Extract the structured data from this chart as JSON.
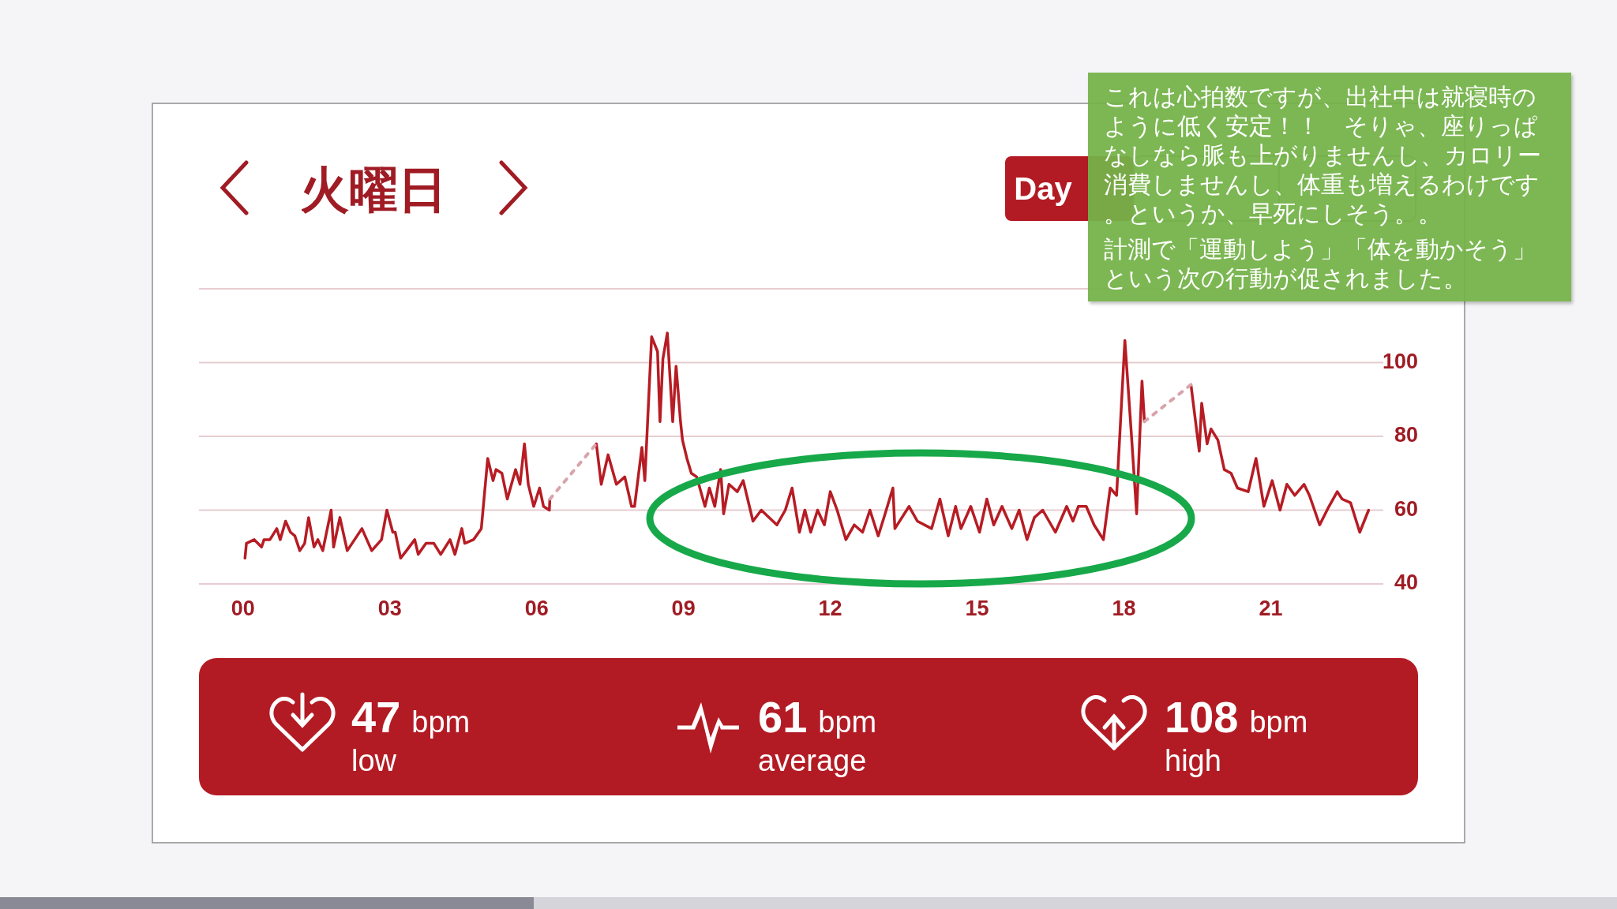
{
  "chart_data": {
    "type": "line",
    "title": "火曜日",
    "xlim": [
      -0.9,
      23.3
    ],
    "xticks": [
      {
        "value": 0,
        "label": "00"
      },
      {
        "value": 3,
        "label": "03"
      },
      {
        "value": 6,
        "label": "06"
      },
      {
        "value": 9,
        "label": "09"
      },
      {
        "value": 12,
        "label": "12"
      },
      {
        "value": 15,
        "label": "15"
      },
      {
        "value": 18,
        "label": "18"
      },
      {
        "value": 21,
        "label": "21"
      }
    ],
    "ylim": [
      40,
      120
    ],
    "yticks": [
      40,
      60,
      80,
      100,
      {
        "value": 120,
        "label": null
      }
    ],
    "grid": "y",
    "series": [
      {
        "color": "#b71c24",
        "line_style": "solid",
        "x": [
          0.04,
          0.07,
          0.23,
          0.38,
          0.43,
          0.55,
          0.69,
          0.76,
          0.87,
          0.97,
          1.06,
          1.16,
          1.26,
          1.34,
          1.45,
          1.53,
          1.63,
          1.8,
          1.85,
          1.98,
          2.13,
          2.43,
          2.63,
          2.83,
          2.94,
          3.06,
          3.11,
          3.22,
          3.34,
          3.51,
          3.58,
          3.74,
          3.9,
          4.04,
          4.23,
          4.33,
          4.47,
          4.53,
          4.71,
          4.87,
          5.0,
          5.11,
          5.17,
          5.29,
          5.4,
          5.57,
          5.66,
          5.75,
          5.83,
          5.94,
          6.06,
          6.14,
          6.26,
          6.27
        ],
        "values": [
          47,
          51,
          52,
          50,
          52,
          52,
          55,
          52,
          57,
          54,
          53,
          49,
          51,
          58,
          50,
          52,
          49,
          60,
          50,
          58,
          49,
          55,
          49,
          52,
          60,
          54,
          54,
          47,
          49,
          52,
          48,
          51,
          51,
          48,
          52,
          48,
          55,
          51,
          52,
          55,
          74,
          68,
          71,
          70,
          63,
          71,
          67,
          78,
          67,
          61,
          66,
          61,
          60,
          63
        ]
      },
      {
        "color": "#b71c24",
        "line_style": "solid",
        "x": [
          7.22,
          7.32,
          7.46,
          7.63,
          7.8,
          7.94,
          8.0,
          8.15,
          8.21,
          8.35,
          8.47,
          8.52,
          8.58,
          8.67,
          8.78,
          8.85,
          8.94,
          8.98,
          9.07,
          9.16,
          9.27,
          9.44,
          9.53,
          9.64,
          9.76,
          9.82,
          9.93,
          10.1,
          10.22,
          10.42,
          10.59,
          10.91,
          11.08,
          11.22,
          11.37,
          11.48,
          11.6,
          11.74,
          11.88,
          12.0,
          12.14,
          12.32,
          12.49,
          12.66,
          12.81,
          12.98,
          13.12,
          13.28,
          13.32,
          13.61,
          13.78,
          14.07,
          14.24,
          14.41,
          14.56,
          14.67,
          14.87,
          15.05,
          15.2,
          15.34,
          15.51,
          15.71,
          15.86,
          16.02,
          16.17,
          16.34,
          16.6,
          16.83,
          16.96,
          17.07,
          17.23,
          17.39,
          17.58,
          17.72,
          17.85,
          18.02,
          18.15,
          18.26,
          18.37,
          18.42
        ],
        "values": [
          78,
          67,
          75,
          67,
          69,
          61,
          61,
          77,
          68,
          107,
          103,
          84,
          101,
          108,
          84,
          99,
          84,
          79,
          74,
          70,
          69,
          61,
          66,
          61,
          71,
          59,
          67,
          65,
          68,
          57,
          60,
          56,
          60,
          66,
          54,
          60,
          54,
          60,
          56,
          65,
          60,
          52,
          56,
          54,
          60,
          53,
          59,
          66,
          55,
          61,
          57,
          55,
          63,
          53,
          61,
          55,
          61,
          54,
          63,
          56,
          61,
          55,
          60,
          52,
          58,
          60,
          54,
          61,
          57,
          61,
          61,
          56,
          52,
          66,
          64,
          106,
          81,
          59,
          95,
          84
        ]
      },
      {
        "color": "#b71c24",
        "line_style": "solid",
        "x": [
          19.37,
          19.54,
          19.59,
          19.7,
          19.78,
          19.92,
          20.05,
          20.19,
          20.32,
          20.54,
          20.7,
          20.86,
          21.03,
          21.19,
          21.33,
          21.49,
          21.68,
          21.79,
          22.0,
          22.19,
          22.36,
          22.46,
          22.63,
          22.82,
          23.0
        ],
        "values": [
          94,
          76,
          89,
          78,
          82,
          79,
          71,
          70,
          66,
          65,
          74,
          61,
          68,
          60,
          67,
          64,
          67,
          64,
          56,
          61,
          65,
          63,
          62,
          54,
          60
        ]
      },
      {
        "color": "#d9a3ab",
        "line_style": "dotted",
        "x": [
          6.27,
          7.22
        ],
        "values": [
          63,
          78
        ]
      },
      {
        "color": "#d9a3ab",
        "line_style": "dotted",
        "x": [
          18.42,
          19.37
        ],
        "values": [
          84,
          94
        ]
      }
    ],
    "annotations": [
      "Day",
      "47 bpm",
      "low",
      "61 bpm",
      "average",
      "108 bpm",
      "high",
      "これは心拍数ですが、出社中は就寝時のように低く安定！！　そりゃ、座りっぱなしなら脈も上がりませんし、カロリー消費しませんし、体重も増えるわけです。というか、早死にしそう。。",
      "計測で「運動しよう」「体を動かそう」という次の行動が促されました。"
    ]
  }
}
